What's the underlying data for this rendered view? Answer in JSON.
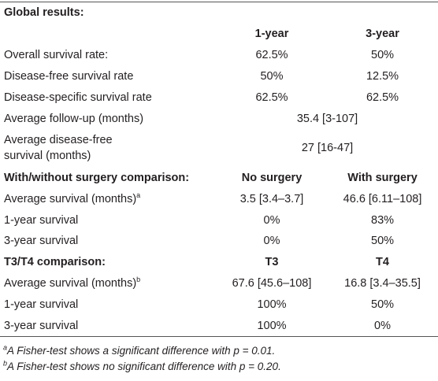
{
  "table": {
    "rows": [
      {
        "label": "Global results:",
        "bold": true
      },
      {
        "cells": [
          "1-year",
          "3-year"
        ],
        "bold": true
      },
      {
        "label": "Overall survival rate:",
        "cells": [
          "62.5%",
          "50%"
        ]
      },
      {
        "label": "Disease-free survival rate",
        "cells": [
          "50%",
          "12.5%"
        ]
      },
      {
        "label": "Disease-specific survival rate",
        "cells": [
          "62.5%",
          "62.5%"
        ]
      },
      {
        "label": "Average follow-up (months)",
        "span": "35.4 [3-107]"
      },
      {
        "label": [
          "Average disease-free",
          "survival (months)"
        ],
        "span": "27 [16-47]"
      },
      {
        "label": "With/without surgery comparison:",
        "cells": [
          "No surgery",
          "With surgery"
        ],
        "bold": true
      },
      {
        "label": "Average survival (months)",
        "note": "a",
        "cells": [
          "3.5 [3.4–3.7]",
          "46.6 [6.11–108]"
        ]
      },
      {
        "label": "1-year survival",
        "cells": [
          "0%",
          "83%"
        ]
      },
      {
        "label": "3-year survival",
        "cells": [
          "0%",
          "50%"
        ]
      },
      {
        "label": "T3/T4 comparison:",
        "cells": [
          "T3",
          "T4"
        ],
        "bold": true
      },
      {
        "label": "Average survival (months)",
        "note": "b",
        "cells": [
          "67.6 [45.6–108]",
          "16.8 [3.4–35.5]"
        ]
      },
      {
        "label": "1-year survival",
        "cells": [
          "100%",
          "50%"
        ]
      },
      {
        "label": "3-year survival",
        "cells": [
          "100%",
          "0%"
        ]
      }
    ],
    "footnotes": [
      {
        "mark": "a",
        "text": "A Fisher-test shows a significant difference with p = 0.01."
      },
      {
        "mark": "b",
        "text": "A Fisher-test shows no significant difference with p = 0.20."
      }
    ]
  }
}
